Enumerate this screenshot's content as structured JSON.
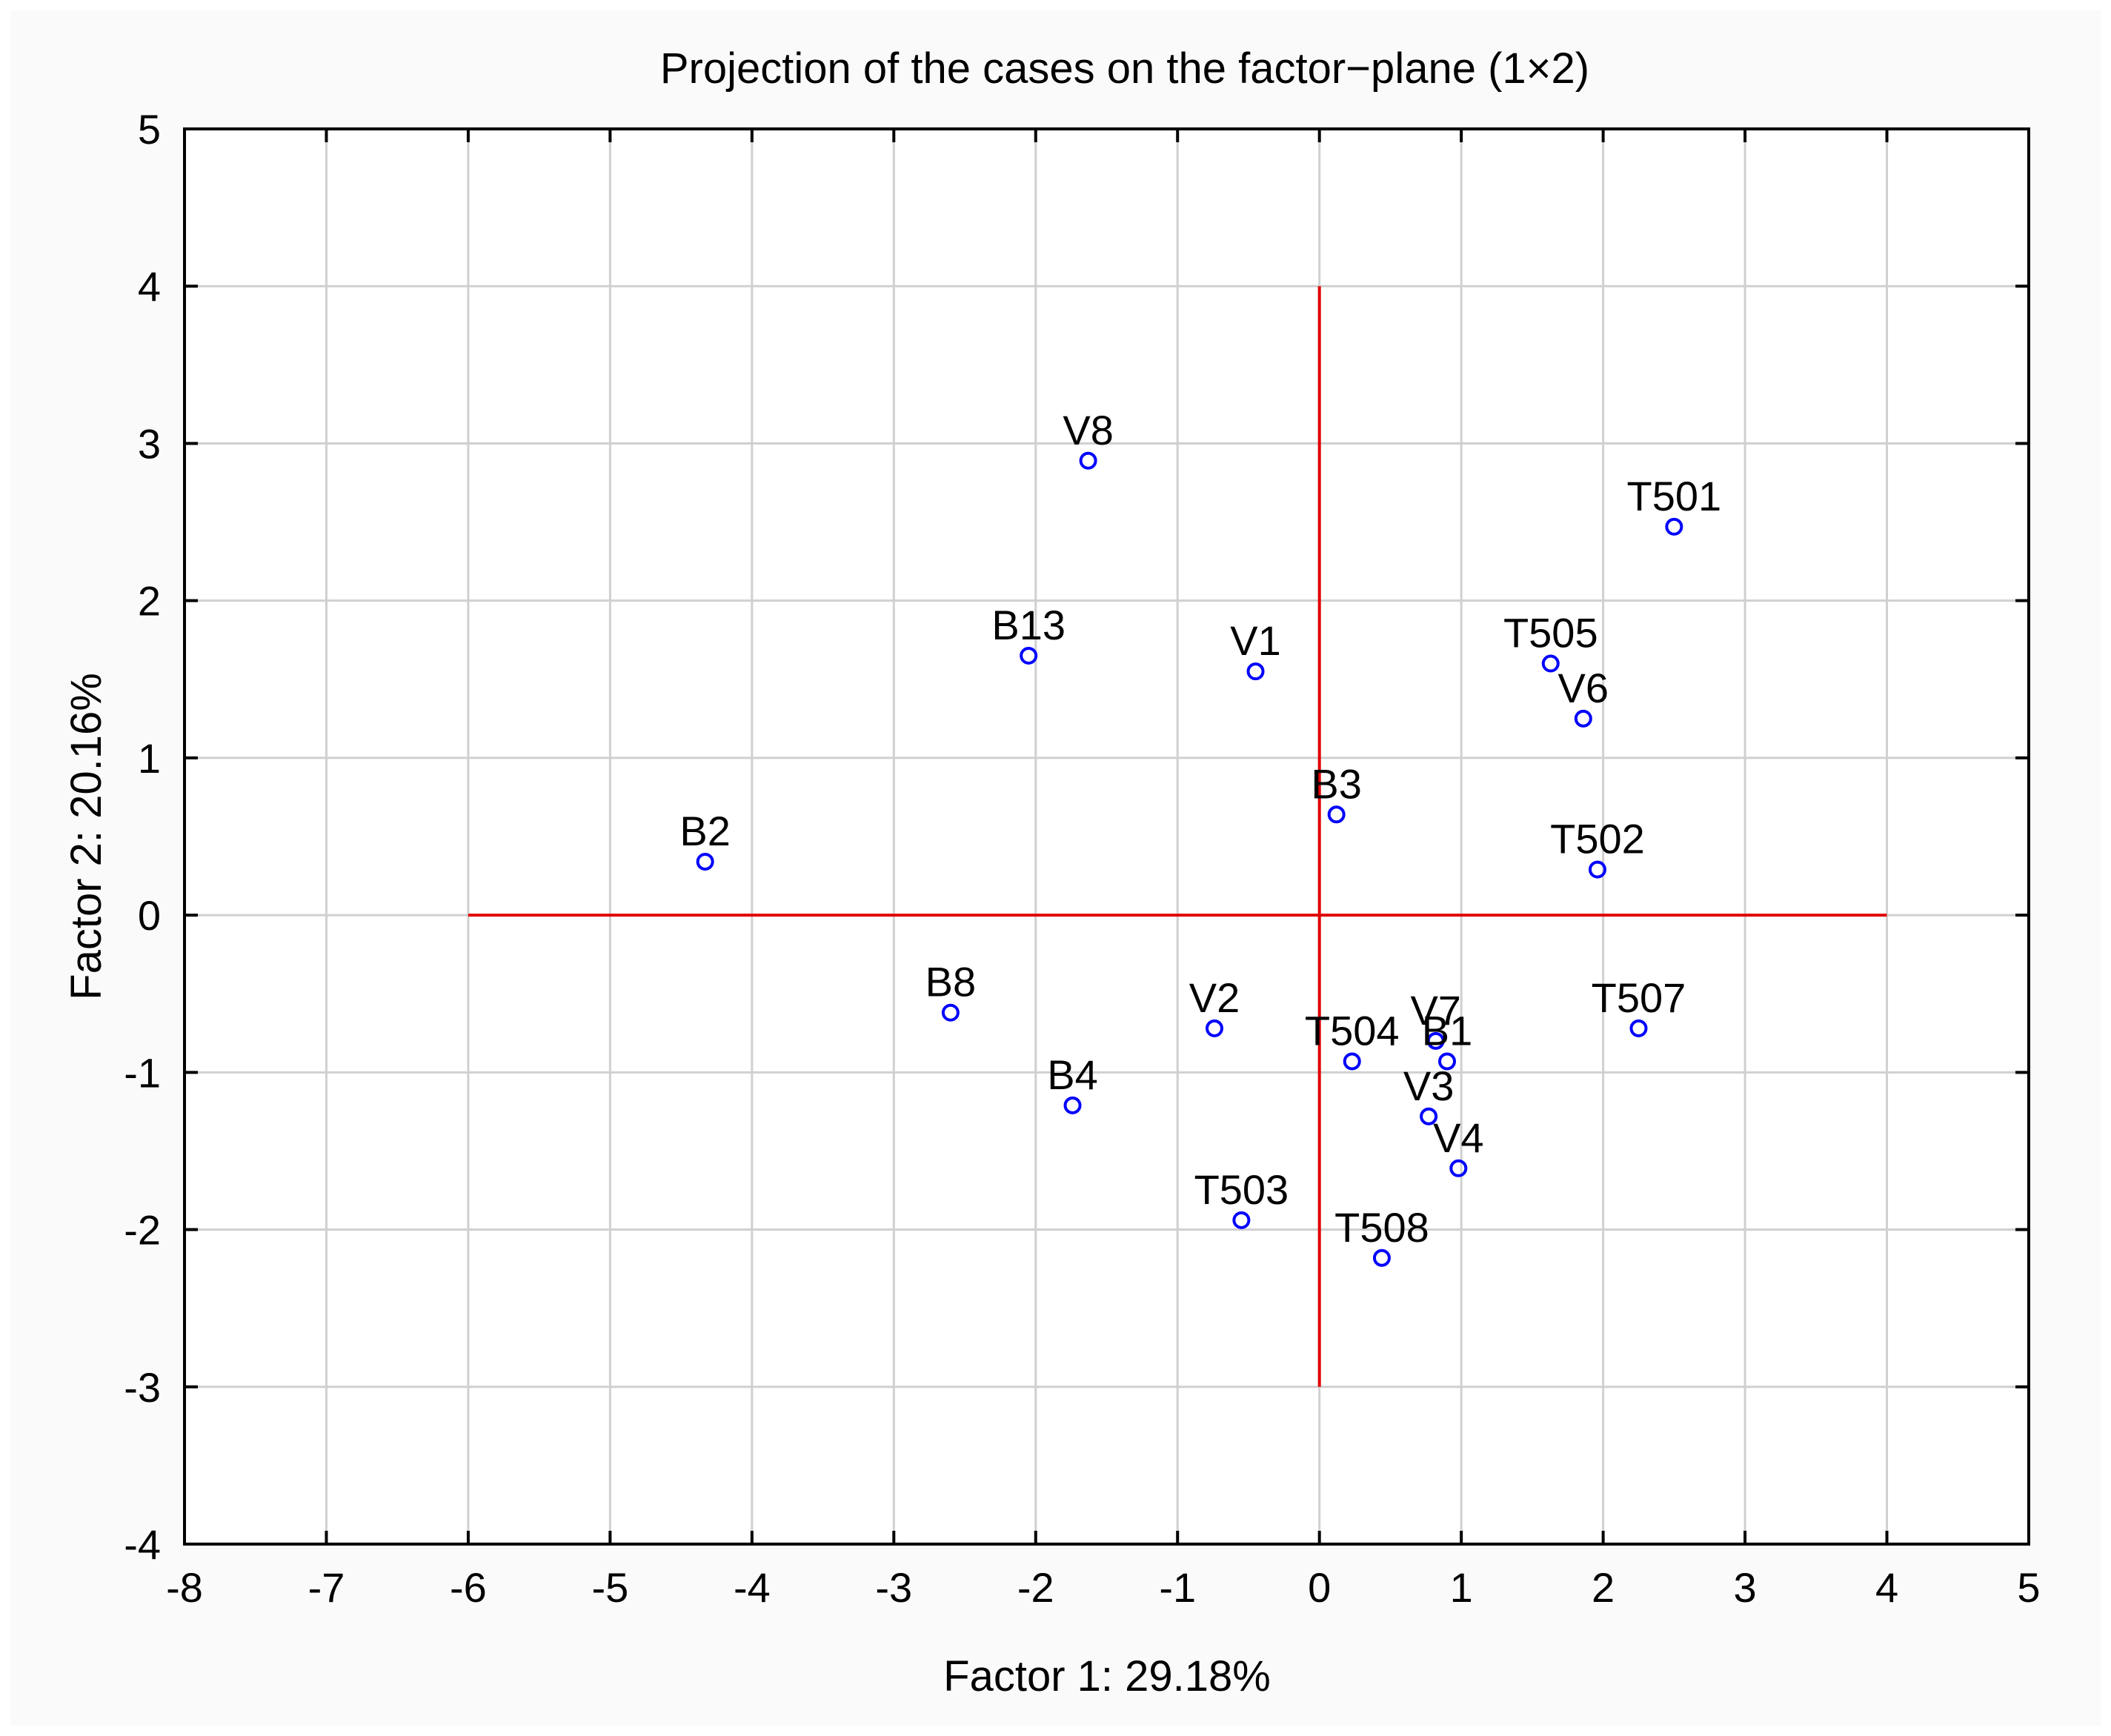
{
  "chart_data": {
    "type": "scatter",
    "title": "Projection of the cases on the factor−plane (1×2)",
    "xlabel": "Factor 1: 29.18%",
    "ylabel": "Factor 2: 20.16%",
    "xlim": [
      -8,
      5
    ],
    "ylim": [
      -4,
      5
    ],
    "xticks": [
      -8,
      -7,
      -6,
      -5,
      -4,
      -3,
      -2,
      -1,
      0,
      1,
      2,
      3,
      4,
      5
    ],
    "yticks": [
      -4,
      -3,
      -2,
      -1,
      0,
      1,
      2,
      3,
      4,
      5
    ],
    "grid": true,
    "point_color": "#0000ff",
    "reference_line_color": "#e00000",
    "reference_lines": {
      "horizontal": {
        "y": 0,
        "x_from": -6,
        "x_to": 4
      },
      "vertical": {
        "x": 0,
        "y_from": -3,
        "y_to": 4
      }
    },
    "points": [
      {
        "label": "V8",
        "x": -1.63,
        "y": 2.89
      },
      {
        "label": "T501",
        "x": 2.5,
        "y": 2.47
      },
      {
        "label": "B13",
        "x": -2.05,
        "y": 1.65
      },
      {
        "label": "V1",
        "x": -0.45,
        "y": 1.55
      },
      {
        "label": "T505",
        "x": 1.63,
        "y": 1.6
      },
      {
        "label": "V6",
        "x": 1.86,
        "y": 1.25
      },
      {
        "label": "B3",
        "x": 0.12,
        "y": 0.64
      },
      {
        "label": "B2",
        "x": -4.33,
        "y": 0.34
      },
      {
        "label": "T502",
        "x": 1.96,
        "y": 0.29
      },
      {
        "label": "B8",
        "x": -2.6,
        "y": -0.62
      },
      {
        "label": "V2",
        "x": -0.74,
        "y": -0.72
      },
      {
        "label": "T507",
        "x": 2.25,
        "y": -0.72
      },
      {
        "label": "V7",
        "x": 0.82,
        "y": -0.8
      },
      {
        "label": "T504",
        "x": 0.23,
        "y": -0.93
      },
      {
        "label": "B1",
        "x": 0.9,
        "y": -0.93
      },
      {
        "label": "B4",
        "x": -1.74,
        "y": -1.21
      },
      {
        "label": "V3",
        "x": 0.77,
        "y": -1.28
      },
      {
        "label": "V4",
        "x": 0.98,
        "y": -1.61
      },
      {
        "label": "T503",
        "x": -0.55,
        "y": -1.94
      },
      {
        "label": "T508",
        "x": 0.44,
        "y": -2.18
      }
    ]
  }
}
